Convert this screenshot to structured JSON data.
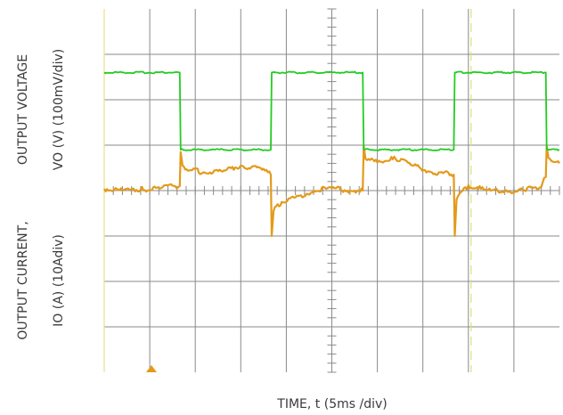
{
  "chart_data": {
    "type": "line",
    "title": "",
    "xlabel": "TIME, t (5ms /div)",
    "ylabel_top": "OUTPUT VOLTAGE",
    "ylabel_top_sub": "VO (V) (100mV/div)",
    "ylabel_bottom": "OUTPUT CURRENT,",
    "ylabel_bottom_sub": "IO (A) (10Adiv)",
    "x_unit": "ms",
    "x_range": [
      0,
      50
    ],
    "divisions": {
      "x": 10,
      "y": 8
    },
    "grid": true,
    "series": [
      {
        "color": "#e39a1a",
        "x": [
          0,
          2,
          4,
          6,
          7,
          8.3,
          8.4,
          8.6,
          9.5,
          11,
          13,
          15,
          17.5,
          18.3,
          18.4,
          18.6,
          19.5,
          21,
          23,
          25,
          27,
          28.4,
          28.5,
          28.7,
          30,
          32,
          34,
          36,
          38.4,
          38.5,
          38.7,
          40,
          42,
          44,
          46,
          48,
          48.5,
          48.6,
          48.8,
          50
        ],
        "y": [
          0.04,
          0.0,
          0.02,
          0.06,
          0.12,
          0.1,
          0.85,
          0.55,
          0.45,
          0.4,
          0.42,
          0.55,
          0.48,
          0.35,
          -1.0,
          -0.45,
          -0.25,
          -0.15,
          0.0,
          0.05,
          0.0,
          0.0,
          0.98,
          0.7,
          0.62,
          0.7,
          0.55,
          0.4,
          0.35,
          -1.0,
          -0.2,
          0.12,
          0.0,
          -0.02,
          0.02,
          0.08,
          0.3,
          0.98,
          0.72,
          0.6
        ]
      },
      {
        "color": "#22cc22",
        "x": [
          0,
          8.3,
          8.4,
          18.3,
          18.4,
          28.4,
          28.5,
          38.4,
          38.5,
          48.5,
          48.6,
          50
        ],
        "y": [
          2.6,
          2.6,
          0.9,
          0.9,
          2.6,
          2.6,
          0.9,
          0.9,
          2.6,
          2.6,
          0.9,
          0.9
        ]
      }
    ]
  }
}
